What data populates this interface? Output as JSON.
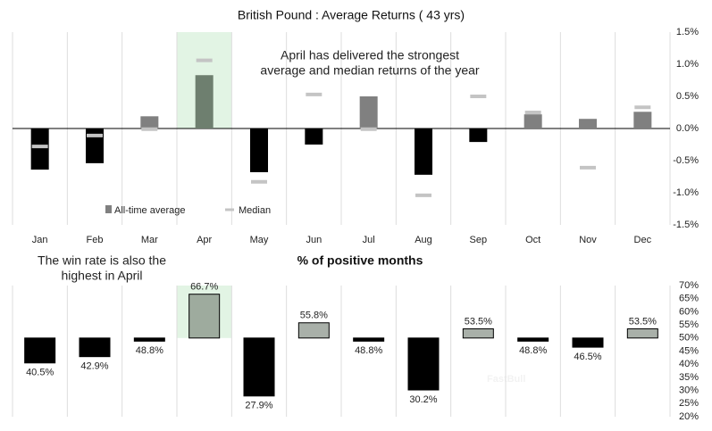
{
  "chart_data": [
    {
      "type": "bar",
      "title": "British Pound : Average Returns ( 43 yrs)",
      "categories": [
        "Jan",
        "Feb",
        "Mar",
        "Apr",
        "May",
        "Jun",
        "Jul",
        "Aug",
        "Sep",
        "Oct",
        "Nov",
        "Dec"
      ],
      "series": [
        {
          "name": "All-time average",
          "color": "#808080",
          "values": [
            -0.64,
            -0.54,
            0.19,
            0.83,
            -0.68,
            -0.25,
            0.5,
            -0.72,
            -0.21,
            0.22,
            0.15,
            0.26
          ]
        },
        {
          "name": "Median",
          "color": "#c4c4c4",
          "values": [
            -0.28,
            -0.11,
            -0.01,
            1.06,
            -0.83,
            0.53,
            -0.01,
            -1.04,
            0.5,
            0.25,
            -0.61,
            0.33
          ]
        }
      ],
      "negative_color": "#000000",
      "highlight_index": 3,
      "highlight_color": "#e2f4e4",
      "highlight_bar_color": "#6e7f6f",
      "ylim": [
        -1.5,
        1.5
      ],
      "yticks": [
        {
          "value": 1.5,
          "label": "1.5%"
        },
        {
          "value": 1,
          "label": "1.0%"
        },
        {
          "value": 0.5,
          "label": "0.5%"
        },
        {
          "value": 0,
          "label": "0.0%"
        },
        {
          "value": -0.5,
          "label": "-0.5%"
        },
        {
          "value": -1,
          "label": "-1.0%"
        },
        {
          "value": -1.5,
          "label": "-1.5%"
        }
      ],
      "tick_color": "#1f2d5a",
      "negative_tick_color": "#c00000",
      "annotation": [
        "April has delivered the strongest",
        "average and median returns of the year"
      ],
      "annotation_color": "#1aa34a",
      "grid": true
    },
    {
      "type": "bar",
      "title": "% of positive months",
      "values": [
        40.5,
        42.9,
        48.8,
        66.7,
        27.9,
        55.8,
        48.8,
        30.2,
        53.5,
        48.8,
        46.5,
        53.5
      ],
      "value_labels": [
        "40.5%",
        "42.9%",
        "48.8%",
        "66.7%",
        "27.9%",
        "55.8%",
        "48.8%",
        "30.2%",
        "53.5%",
        "48.8%",
        "46.5%",
        "53.5%"
      ],
      "baseline": 50,
      "color": "#a9b0a9",
      "negative_color": "#000000",
      "highlight_index": 3,
      "highlight_color": "#e2f4e4",
      "highlight_bar_color": "#9eab9e",
      "ylim": [
        20,
        70
      ],
      "yticks": [
        {
          "value": 70,
          "label": "70%"
        },
        {
          "value": 65,
          "label": "65%"
        },
        {
          "value": 60,
          "label": "60%"
        },
        {
          "value": 55,
          "label": "55%"
        },
        {
          "value": 50,
          "label": "50%"
        },
        {
          "value": 45,
          "label": "45%"
        },
        {
          "value": 40,
          "label": "40%"
        },
        {
          "value": 35,
          "label": "35%"
        },
        {
          "value": 30,
          "label": "30%"
        },
        {
          "value": 25,
          "label": "25%"
        },
        {
          "value": 20,
          "label": "20%"
        }
      ],
      "tick_color": "#1f2d5a",
      "annotation": [
        "The win rate is also the",
        "highest in April"
      ],
      "annotation_color": "#1aa34a",
      "watermark": "FastBull",
      "grid": true
    }
  ]
}
